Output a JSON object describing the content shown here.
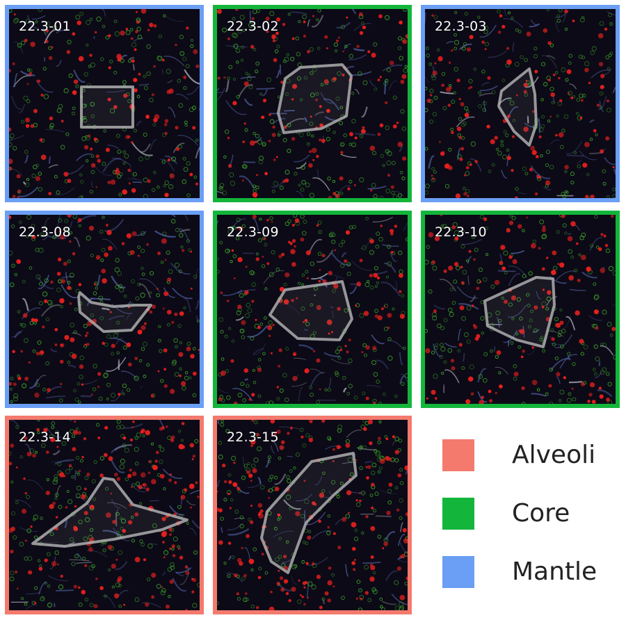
{
  "tiles": [
    {
      "label": "22.3-01",
      "category": "Mantle",
      "seed": 11
    },
    {
      "label": "22.3-02",
      "category": "Core",
      "seed": 23
    },
    {
      "label": "22.3-03",
      "category": "Mantle",
      "seed": 37
    },
    {
      "label": "22.3-08",
      "category": "Mantle",
      "seed": 41
    },
    {
      "label": "22.3-09",
      "category": "Core",
      "seed": 53
    },
    {
      "label": "22.3-10",
      "category": "Core",
      "seed": 67
    },
    {
      "label": "22.3-14",
      "category": "Alveoli",
      "seed": 71
    },
    {
      "label": "22.3-15",
      "category": "Alveoli",
      "seed": 89
    }
  ],
  "legend": [
    {
      "label": "Alveoli",
      "color": "#f47a6e"
    },
    {
      "label": "Core",
      "color": "#13b53b"
    },
    {
      "label": "Mantle",
      "color": "#6b9ef5"
    }
  ],
  "colors": {
    "background": "#0c0a16",
    "cell_red": "#e8201e",
    "cell_green": "#3fae2e",
    "tissue_blue": "#5a6cb8",
    "roi_outline": "#b8b8b8"
  }
}
